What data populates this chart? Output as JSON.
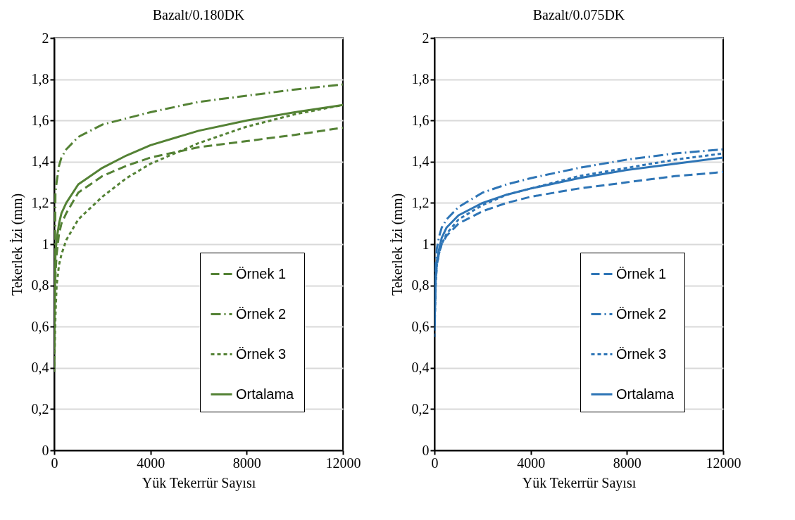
{
  "chart_data": [
    {
      "type": "line",
      "title": "Bazalt/0.180DK",
      "xlabel": "Yük Tekerrür Sayısı",
      "ylabel": "Tekerlek İzi (mm)",
      "x": [
        0,
        50,
        100,
        200,
        300,
        500,
        1000,
        2000,
        3000,
        4000,
        6000,
        8000,
        10000,
        12000
      ],
      "series": [
        {
          "name": "Örnek 1",
          "color": "#548235",
          "line_style": "dashed",
          "values": [
            0.7,
            0.85,
            0.95,
            1.05,
            1.1,
            1.15,
            1.25,
            1.33,
            1.38,
            1.42,
            1.47,
            1.5,
            1.53,
            1.565
          ]
        },
        {
          "name": "Örnek 2",
          "color": "#548235",
          "line_style": "dashdot",
          "values": [
            0.4,
            1.25,
            1.3,
            1.38,
            1.42,
            1.46,
            1.52,
            1.58,
            1.61,
            1.64,
            1.69,
            1.72,
            1.75,
            1.775
          ]
        },
        {
          "name": "Örnek 3",
          "color": "#548235",
          "line_style": "dotted",
          "values": [
            0.38,
            0.65,
            0.8,
            0.9,
            0.95,
            1.02,
            1.12,
            1.23,
            1.32,
            1.39,
            1.49,
            1.57,
            1.63,
            1.675
          ]
        },
        {
          "name": "Ortalama",
          "color": "#548235",
          "line_style": "solid",
          "values": [
            0.5,
            0.95,
            1.02,
            1.1,
            1.15,
            1.2,
            1.29,
            1.37,
            1.43,
            1.48,
            1.55,
            1.6,
            1.64,
            1.675
          ]
        }
      ],
      "xlim": [
        0,
        12000
      ],
      "xticks": [
        0,
        4000,
        8000,
        12000
      ],
      "ylim": [
        0,
        2
      ],
      "yticks": [
        0,
        {
          "value": 0.2,
          "label": "0,2"
        },
        {
          "value": 0.4,
          "label": "0,4"
        },
        {
          "value": 0.6,
          "label": "0,6"
        },
        {
          "value": 0.8,
          "label": "0,8"
        },
        1,
        {
          "value": 1.2,
          "label": "1,2"
        },
        {
          "value": 1.4,
          "label": "1,4"
        },
        {
          "value": 1.6,
          "label": "1,6"
        },
        {
          "value": 1.8,
          "label": "1,8"
        },
        2
      ],
      "grid": "y",
      "legend": "bottom right",
      "marker": "none"
    },
    {
      "type": "line",
      "title": "Bazalt/0.075DK",
      "xlabel": "Yük Tekerrür Sayısı",
      "ylabel": "Tekerlek İzi (mm)",
      "x": [
        0,
        50,
        100,
        200,
        300,
        500,
        1000,
        2000,
        3000,
        4000,
        6000,
        8000,
        10000,
        12000
      ],
      "series": [
        {
          "name": "Örnek 1",
          "color": "#2e75b6",
          "line_style": "dashed",
          "values": [
            0.6,
            0.82,
            0.9,
            0.96,
            1.0,
            1.04,
            1.1,
            1.16,
            1.2,
            1.23,
            1.27,
            1.3,
            1.33,
            1.35
          ]
        },
        {
          "name": "Örnek 2",
          "color": "#2e75b6",
          "line_style": "dashdot",
          "values": [
            0.6,
            0.9,
            0.98,
            1.04,
            1.08,
            1.12,
            1.18,
            1.25,
            1.29,
            1.32,
            1.37,
            1.41,
            1.44,
            1.46
          ]
        },
        {
          "name": "Örnek 3",
          "color": "#2e75b6",
          "line_style": "dotted",
          "values": [
            0.55,
            0.8,
            0.9,
            0.96,
            1.0,
            1.05,
            1.12,
            1.19,
            1.24,
            1.27,
            1.33,
            1.37,
            1.41,
            1.44
          ]
        },
        {
          "name": "Ortalama",
          "color": "#2e75b6",
          "line_style": "solid",
          "values": [
            0.6,
            0.85,
            0.92,
            0.98,
            1.03,
            1.08,
            1.14,
            1.2,
            1.24,
            1.27,
            1.32,
            1.36,
            1.39,
            1.42
          ]
        }
      ],
      "xlim": [
        0,
        12000
      ],
      "xticks": [
        0,
        4000,
        8000,
        12000
      ],
      "ylim": [
        0,
        2
      ],
      "yticks": [
        0,
        {
          "value": 0.2,
          "label": "0,2"
        },
        {
          "value": 0.4,
          "label": "0,4"
        },
        {
          "value": 0.6,
          "label": "0,6"
        },
        {
          "value": 0.8,
          "label": "0,8"
        },
        1,
        {
          "value": 1.2,
          "label": "1,2"
        },
        {
          "value": 1.4,
          "label": "1,4"
        },
        {
          "value": 1.6,
          "label": "1,6"
        },
        {
          "value": 1.8,
          "label": "1,8"
        },
        2
      ],
      "grid": "y",
      "legend": "bottom right",
      "marker": "none"
    }
  ]
}
